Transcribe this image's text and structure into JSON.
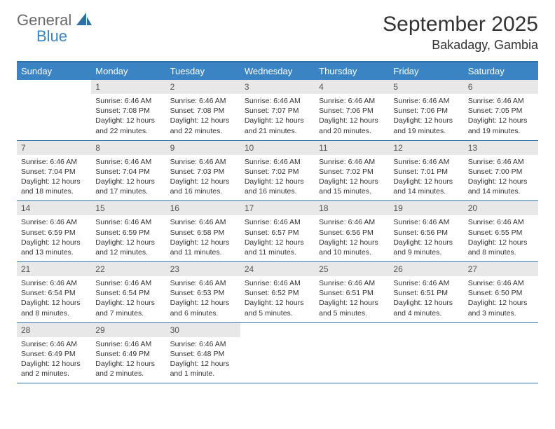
{
  "logo": {
    "top": "General",
    "bottom": "Blue"
  },
  "header": {
    "month": "September 2025",
    "location": "Bakadagy, Gambia"
  },
  "colors": {
    "header_bg": "#3b84c4",
    "border": "#2f6fa8",
    "daynum_bg": "#e8e8e8",
    "logo_gray": "#6b6b6b",
    "logo_blue": "#3b84c4",
    "text": "#333333",
    "bg": "#ffffff"
  },
  "days_of_week": [
    "Sunday",
    "Monday",
    "Tuesday",
    "Wednesday",
    "Thursday",
    "Friday",
    "Saturday"
  ],
  "weeks": [
    [
      {
        "n": "",
        "sunrise": "",
        "sunset": "",
        "daylight": ""
      },
      {
        "n": "1",
        "sunrise": "6:46 AM",
        "sunset": "7:08 PM",
        "daylight": "12 hours and 22 minutes."
      },
      {
        "n": "2",
        "sunrise": "6:46 AM",
        "sunset": "7:08 PM",
        "daylight": "12 hours and 22 minutes."
      },
      {
        "n": "3",
        "sunrise": "6:46 AM",
        "sunset": "7:07 PM",
        "daylight": "12 hours and 21 minutes."
      },
      {
        "n": "4",
        "sunrise": "6:46 AM",
        "sunset": "7:06 PM",
        "daylight": "12 hours and 20 minutes."
      },
      {
        "n": "5",
        "sunrise": "6:46 AM",
        "sunset": "7:06 PM",
        "daylight": "12 hours and 19 minutes."
      },
      {
        "n": "6",
        "sunrise": "6:46 AM",
        "sunset": "7:05 PM",
        "daylight": "12 hours and 19 minutes."
      }
    ],
    [
      {
        "n": "7",
        "sunrise": "6:46 AM",
        "sunset": "7:04 PM",
        "daylight": "12 hours and 18 minutes."
      },
      {
        "n": "8",
        "sunrise": "6:46 AM",
        "sunset": "7:04 PM",
        "daylight": "12 hours and 17 minutes."
      },
      {
        "n": "9",
        "sunrise": "6:46 AM",
        "sunset": "7:03 PM",
        "daylight": "12 hours and 16 minutes."
      },
      {
        "n": "10",
        "sunrise": "6:46 AM",
        "sunset": "7:02 PM",
        "daylight": "12 hours and 16 minutes."
      },
      {
        "n": "11",
        "sunrise": "6:46 AM",
        "sunset": "7:02 PM",
        "daylight": "12 hours and 15 minutes."
      },
      {
        "n": "12",
        "sunrise": "6:46 AM",
        "sunset": "7:01 PM",
        "daylight": "12 hours and 14 minutes."
      },
      {
        "n": "13",
        "sunrise": "6:46 AM",
        "sunset": "7:00 PM",
        "daylight": "12 hours and 14 minutes."
      }
    ],
    [
      {
        "n": "14",
        "sunrise": "6:46 AM",
        "sunset": "6:59 PM",
        "daylight": "12 hours and 13 minutes."
      },
      {
        "n": "15",
        "sunrise": "6:46 AM",
        "sunset": "6:59 PM",
        "daylight": "12 hours and 12 minutes."
      },
      {
        "n": "16",
        "sunrise": "6:46 AM",
        "sunset": "6:58 PM",
        "daylight": "12 hours and 11 minutes."
      },
      {
        "n": "17",
        "sunrise": "6:46 AM",
        "sunset": "6:57 PM",
        "daylight": "12 hours and 11 minutes."
      },
      {
        "n": "18",
        "sunrise": "6:46 AM",
        "sunset": "6:56 PM",
        "daylight": "12 hours and 10 minutes."
      },
      {
        "n": "19",
        "sunrise": "6:46 AM",
        "sunset": "6:56 PM",
        "daylight": "12 hours and 9 minutes."
      },
      {
        "n": "20",
        "sunrise": "6:46 AM",
        "sunset": "6:55 PM",
        "daylight": "12 hours and 8 minutes."
      }
    ],
    [
      {
        "n": "21",
        "sunrise": "6:46 AM",
        "sunset": "6:54 PM",
        "daylight": "12 hours and 8 minutes."
      },
      {
        "n": "22",
        "sunrise": "6:46 AM",
        "sunset": "6:54 PM",
        "daylight": "12 hours and 7 minutes."
      },
      {
        "n": "23",
        "sunrise": "6:46 AM",
        "sunset": "6:53 PM",
        "daylight": "12 hours and 6 minutes."
      },
      {
        "n": "24",
        "sunrise": "6:46 AM",
        "sunset": "6:52 PM",
        "daylight": "12 hours and 5 minutes."
      },
      {
        "n": "25",
        "sunrise": "6:46 AM",
        "sunset": "6:51 PM",
        "daylight": "12 hours and 5 minutes."
      },
      {
        "n": "26",
        "sunrise": "6:46 AM",
        "sunset": "6:51 PM",
        "daylight": "12 hours and 4 minutes."
      },
      {
        "n": "27",
        "sunrise": "6:46 AM",
        "sunset": "6:50 PM",
        "daylight": "12 hours and 3 minutes."
      }
    ],
    [
      {
        "n": "28",
        "sunrise": "6:46 AM",
        "sunset": "6:49 PM",
        "daylight": "12 hours and 2 minutes."
      },
      {
        "n": "29",
        "sunrise": "6:46 AM",
        "sunset": "6:49 PM",
        "daylight": "12 hours and 2 minutes."
      },
      {
        "n": "30",
        "sunrise": "6:46 AM",
        "sunset": "6:48 PM",
        "daylight": "12 hours and 1 minute."
      },
      {
        "n": "",
        "sunrise": "",
        "sunset": "",
        "daylight": ""
      },
      {
        "n": "",
        "sunrise": "",
        "sunset": "",
        "daylight": ""
      },
      {
        "n": "",
        "sunrise": "",
        "sunset": "",
        "daylight": ""
      },
      {
        "n": "",
        "sunrise": "",
        "sunset": "",
        "daylight": ""
      }
    ]
  ],
  "labels": {
    "sunrise": "Sunrise: ",
    "sunset": "Sunset: ",
    "daylight": "Daylight: "
  }
}
